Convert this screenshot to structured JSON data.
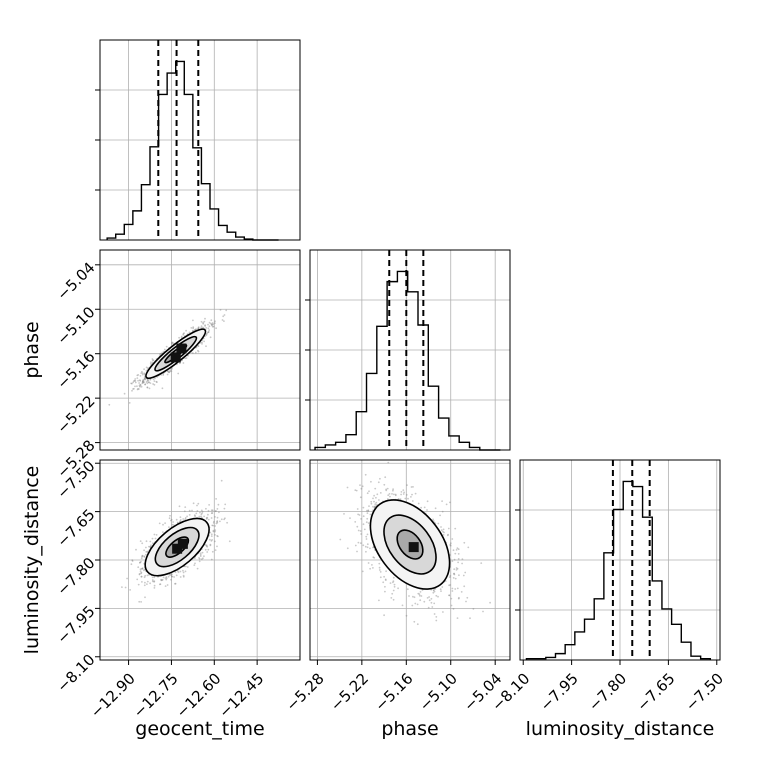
{
  "chart_data": {
    "type": "corner",
    "title": "",
    "parameters": [
      {
        "name": "geocent_time",
        "range": [
          -13.0,
          -12.3
        ],
        "ticks": [
          "−12.90",
          "−12.75",
          "−12.60",
          "−12.45"
        ],
        "tick_values": [
          -12.9,
          -12.75,
          -12.6,
          -12.45
        ],
        "quantiles": [
          -12.796,
          -12.732,
          -12.656
        ],
        "hist_bin_edges": [
          -12.975,
          -12.945,
          -12.915,
          -12.885,
          -12.855,
          -12.825,
          -12.795,
          -12.765,
          -12.735,
          -12.705,
          -12.675,
          -12.645,
          -12.615,
          -12.585,
          -12.555,
          -12.525,
          -12.495,
          -12.465,
          -12.435,
          -12.405,
          -12.375
        ],
        "hist_counts": [
          2,
          6,
          16,
          30,
          57,
          96,
          150,
          172,
          184,
          150,
          95,
          58,
          32,
          15,
          8,
          3,
          1,
          0,
          0,
          0
        ]
      },
      {
        "name": "phase",
        "range": [
          -5.29,
          -5.02
        ],
        "ticks": [
          "−5.28",
          "−5.22",
          "−5.16",
          "−5.10",
          "−5.04"
        ],
        "tick_values": [
          -5.28,
          -5.22,
          -5.16,
          -5.1,
          -5.04
        ],
        "quantiles": [
          -5.183,
          -5.16,
          -5.137
        ],
        "hist_bin_edges": [
          -5.2832,
          -5.2693,
          -5.2554,
          -5.2415,
          -5.2276,
          -5.2137,
          -5.1998,
          -5.1859,
          -5.172,
          -5.1581,
          -5.1442,
          -5.1303,
          -5.1164,
          -5.1025,
          -5.0886,
          -5.0747,
          -5.0608,
          -5.0469,
          -5.033
        ],
        "hist_counts": [
          2,
          4,
          6,
          12,
          30,
          60,
          97,
          132,
          140,
          124,
          98,
          50,
          25,
          11,
          6,
          2,
          0
        ]
      },
      {
        "name": "luminosity_distance",
        "range": [
          -8.11,
          -7.49
        ],
        "ticks": [
          "−8.10",
          "−7.95",
          "−7.80",
          "−7.65",
          "−7.50"
        ],
        "tick_values": [
          -8.1,
          -7.95,
          -7.8,
          -7.65,
          -7.5
        ],
        "quantiles": [
          -7.822,
          -7.762,
          -7.708
        ],
        "hist_bin_edges": [
          -8.09,
          -8.06,
          -8.03,
          -8.0,
          -7.97,
          -7.94,
          -7.91,
          -7.88,
          -7.85,
          -7.82,
          -7.79,
          -7.76,
          -7.73,
          -7.7,
          -7.67,
          -7.64,
          -7.61,
          -7.58,
          -7.55,
          -7.52
        ],
        "hist_counts": [
          1,
          1,
          2,
          5,
          12,
          22,
          32,
          48,
          84,
          118,
          140,
          136,
          112,
          62,
          40,
          28,
          14,
          3,
          1
        ]
      }
    ],
    "pairs": [
      {
        "x": "geocent_time",
        "y": "phase",
        "center": [
          -12.735,
          -5.16
        ],
        "contours": [
          [
            0.048,
            0.01,
            39
          ],
          [
            0.092,
            0.019,
            39
          ],
          [
            0.132,
            0.028,
            39
          ]
        ],
        "dense_cells": [
          [
            -12.735,
            -5.165
          ],
          [
            -12.715,
            -5.153
          ]
        ]
      },
      {
        "x": "geocent_time",
        "y": "luminosity_distance",
        "center": [
          -12.73,
          -7.76
        ],
        "contours": [
          [
            0.048,
            0.022,
            40
          ],
          [
            0.092,
            0.045,
            40
          ],
          [
            0.135,
            0.065,
            40
          ]
        ],
        "dense_cells": [
          [
            -12.73,
            -7.765
          ],
          [
            -12.71,
            -7.75
          ]
        ]
      },
      {
        "x": "phase",
        "y": "luminosity_distance",
        "center": [
          -5.155,
          -7.752
        ],
        "contours": [
          [
            0.014,
            0.022,
            37
          ],
          [
            0.028,
            0.045,
            37
          ],
          [
            0.043,
            0.068,
            37
          ]
        ],
        "dense_cells": [
          [
            -5.15,
            -7.76
          ]
        ]
      }
    ],
    "grid": true,
    "legend": "none"
  }
}
